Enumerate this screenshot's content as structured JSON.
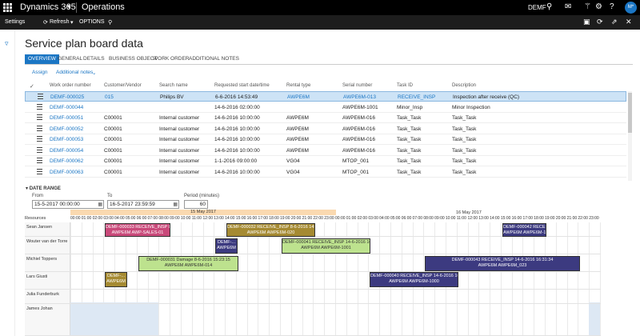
{
  "topbar": {
    "app_name": "Dynamics 365",
    "module": "Operations",
    "company": "DEMF",
    "avatar": "M*"
  },
  "actionbar": {
    "settings": "Settings",
    "refresh": "Refresh",
    "options": "OPTIONS"
  },
  "page": {
    "title": "Service plan board data",
    "tabs": [
      "OVERVIEW",
      "GENERAL",
      "DETAILS",
      "BUSINESS OBJECT",
      "WORK ORDER",
      "ADDITIONAL NOTES"
    ],
    "assign": "Assign",
    "additional_notes": "Additional notes"
  },
  "grid": {
    "headers": [
      "Work order number",
      "Customer/Vendor",
      "Search name",
      "Requested start date/time",
      "Rental type",
      "Serial number",
      "Task ID",
      "Description"
    ],
    "rows": [
      [
        "DEMF-000025",
        "015",
        "Philips BV",
        "6-6-2016 14:53:49",
        "AWPE6M",
        "AWPE6M-013",
        "RECEIVE_INSP",
        "Inspection after receive (QC)"
      ],
      [
        "DEMF-000044",
        "",
        "",
        "14-6-2016 02:00:00",
        "",
        "AWPE6M-1001",
        "Minor_Insp",
        "Minor Inspection"
      ],
      [
        "DEMF-000051",
        "C00001",
        "Internal customer",
        "14-6-2016 10:00:00",
        "AWPE6M",
        "AWPE6M-016",
        "Task_Task",
        "Task_Task"
      ],
      [
        "DEMF-000052",
        "C00001",
        "Internal customer",
        "14-6-2016 10:00:00",
        "AWPE6M",
        "AWPE6M-016",
        "Task_Task",
        "Task_Task"
      ],
      [
        "DEMF-000053",
        "C00001",
        "Internal customer",
        "14-6-2016 10:00:00",
        "AWPE6M",
        "AWPE6M-016",
        "Task_Task",
        "Task_Task"
      ],
      [
        "DEMF-000054",
        "C00001",
        "Internal customer",
        "14-6-2016 10:00:00",
        "AWPE6M",
        "AWPE6M-016",
        "Task_Task",
        "Task_Task"
      ],
      [
        "DEMF-000062",
        "C00001",
        "Internal customer",
        "1-1-2016 09:00:00",
        "VG04",
        "MTOP_001",
        "Task_Task",
        "Task_Task"
      ],
      [
        "DEMF-000063",
        "C00001",
        "Internal customer",
        "14-6-2016 10:00:00",
        "VG04",
        "MTOP_001",
        "Task_Task",
        "Task_Task"
      ]
    ]
  },
  "daterange": {
    "section_label": "DATE RANGE",
    "from_label": "From",
    "from_value": "15-5-2017 00:00:00",
    "to_label": "To",
    "to_value": "16-5-2017 23:59:59",
    "period_label": "Period (minutes)",
    "period_value": "60"
  },
  "board": {
    "day1": "15 May 2017",
    "day2": "16 May 2017",
    "resources_label": "Resources",
    "hours": [
      "00:00",
      "01:00",
      "02:00",
      "03:00",
      "04:00",
      "05:00",
      "06:00",
      "07:00",
      "08:00",
      "09:00",
      "10:00",
      "11:00",
      "12:00",
      "13:00",
      "14:00",
      "15:00",
      "16:00",
      "17:00",
      "18:00",
      "19:00",
      "20:00",
      "21:00",
      "22:00",
      "23:00",
      "00:00",
      "01:00",
      "02:00",
      "03:00",
      "04:00",
      "05:00",
      "06:00",
      "07:00",
      "08:00",
      "09:00",
      "10:00",
      "11:00",
      "12:00",
      "13:00",
      "14:00",
      "15:00",
      "16:00",
      "17:00",
      "18:00",
      "19:00",
      "20:00",
      "21:00",
      "22:00",
      "23:00"
    ],
    "resources": [
      "Sean Jansen",
      "Wouter van der Torre",
      "Michiel Toppers",
      "Lars Giusti",
      "Julia Funderburk",
      "James Johan"
    ],
    "tasks": [
      {
        "line1": "DEMF-000033 RECEIVE_INSP 8-6...",
        "line2": "AWPE6M AWP-SALES-01",
        "color": "#c9497a"
      },
      {
        "line1": "DEMF-000032 RECEIVE_INSP 8-6-2016 14:56...",
        "line2": "AWPE6M AWPE6M-020",
        "color": "#a58a32"
      },
      {
        "line1": "DEMF-000042 RECEIVE_INS...",
        "line2": "AWPE6M AWPE6M-10",
        "color": "#3c3a80"
      },
      {
        "line1": "DEMF-...",
        "line2": "AWPE6M",
        "color": "#3c3a80"
      },
      {
        "line1": "DEMF-000041 RECEIVE_INSP 14-6-2016 16:2...",
        "line2": "AWPE6M AWPE6M-1001",
        "color": "#bde28e"
      },
      {
        "line1": "DEMF-000031 Damage 8-6-2016 15:23:15",
        "line2": "AWPE6M AWPE6M-014",
        "color": "#bde28e"
      },
      {
        "line1": "DEMF-000043 RECEIVE_INSP 14-6-2016 16:31:34",
        "line2": "AWPE6M AWPE6M_023",
        "color": "#3c3a80"
      },
      {
        "line1": "DEMF-...",
        "line2": "AWPE6M",
        "color": "#a58a32"
      },
      {
        "line1": "DEMF-000040 RECEIVE_INSP 14-6-2016 16:2...",
        "line2": "AWPE6M AWPE6M-1000",
        "color": "#3c3a80"
      }
    ]
  }
}
